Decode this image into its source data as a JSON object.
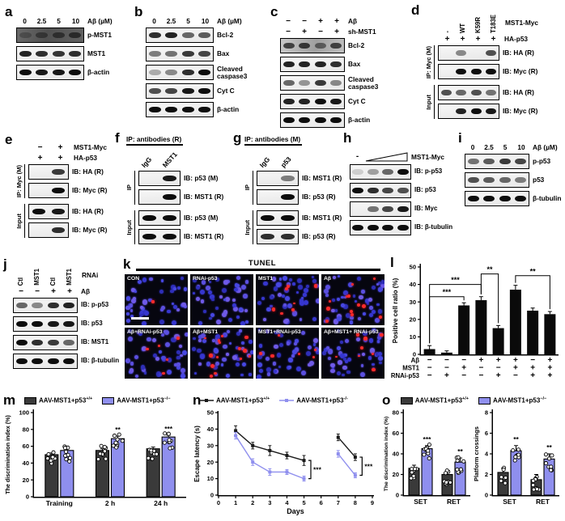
{
  "colors": {
    "wt_bar": "#3a3a3a",
    "ko_bar": "#8f8fee",
    "bar_black": "#0a0a0a",
    "tunel_red": "#fb2b2b"
  },
  "panels": {
    "a": {
      "label": "a",
      "lane_labels": [
        "0",
        "2.5",
        "5",
        "10"
      ],
      "lane_header": "Aβ (µM)",
      "groups": [
        {
          "name": null,
          "blots": [
            {
              "label": "p-MST1",
              "dark": true,
              "bands": [
                0.3,
                0.5,
                0.62,
                0.72
              ]
            },
            {
              "label": "MST1",
              "bands": [
                0.9,
                0.85,
                0.82,
                0.85
              ]
            },
            {
              "label": "β-actin",
              "bands": [
                1,
                0.95,
                0.95,
                1
              ]
            }
          ]
        }
      ]
    },
    "b": {
      "label": "b",
      "lane_labels": [
        "0",
        "2.5",
        "5",
        "10"
      ],
      "lane_header": "Aβ (µM)",
      "groups": [
        {
          "name": null,
          "blots": [
            {
              "label": "Bcl-2",
              "bands": [
                0.85,
                0.9,
                0.6,
                0.65
              ]
            },
            {
              "label": "Bax",
              "bands": [
                0.5,
                0.55,
                0.8,
                0.75
              ]
            },
            {
              "label": "Cleaved\ncaspase3",
              "bands": [
                0.3,
                0.45,
                0.85,
                1
              ]
            },
            {
              "label": "Cyt C",
              "bands": [
                0.7,
                0.75,
                0.95,
                1
              ]
            },
            {
              "label": "β-actin",
              "bands": [
                1,
                1,
                1,
                1
              ]
            }
          ]
        }
      ]
    },
    "c": {
      "label": "c",
      "condition_rows": [
        {
          "name": "Aβ",
          "values": [
            "−",
            "−",
            "+",
            "+"
          ]
        },
        {
          "name": "sh-MST1",
          "values": [
            "−",
            "+",
            "−",
            "+"
          ]
        }
      ],
      "groups": [
        {
          "name": null,
          "blots": [
            {
              "label": "Bcl-2",
              "gray": true,
              "bands": [
                0.7,
                0.75,
                0.5,
                0.7
              ]
            },
            {
              "label": "Bax",
              "bands": [
                0.9,
                0.9,
                0.9,
                0.85
              ]
            },
            {
              "label": "Cleaved\ncaspase3",
              "bands": [
                0.6,
                0.4,
                0.8,
                0.45
              ]
            },
            {
              "label": "Cyt C",
              "bands": [
                0.9,
                0.9,
                1,
                0.95
              ]
            },
            {
              "label": "β-actin",
              "bands": [
                1,
                1,
                1,
                1
              ]
            }
          ]
        }
      ]
    },
    "d": {
      "label": "d",
      "rotated_lanes": [
        "-",
        "WT",
        "K59R",
        "T183E"
      ],
      "rotated_header": "MST1-Myc",
      "condition_rows": [
        {
          "name": "HA-p53",
          "values": [
            "+",
            "+",
            "+",
            "+"
          ]
        }
      ],
      "groups": [
        {
          "name": "IP: Myc (M)",
          "blots": [
            {
              "label": "IB: HA (R)",
              "bands": [
                0,
                0.45,
                0,
                0.7
              ]
            },
            {
              "label": "IB: Myc (R)",
              "bands": [
                0,
                1,
                1,
                1
              ]
            }
          ]
        },
        {
          "name": "Input",
          "blots": [
            {
              "label": "IB: HA (R)",
              "bands": [
                0.7,
                0.6,
                0.7,
                0.55
              ]
            },
            {
              "label": "IB: Myc (R)",
              "bands": [
                0,
                0.9,
                1,
                0.95
              ]
            }
          ]
        }
      ]
    },
    "e": {
      "label": "e",
      "condition_rows": [
        {
          "name": "MST1-Myc",
          "values": [
            "−",
            "+"
          ]
        },
        {
          "name": "HA-p53",
          "values": [
            "+",
            "+"
          ]
        }
      ],
      "groups": [
        {
          "name": "IP: Myc (M)",
          "blots": [
            {
              "label": "IB: HA (R)",
              "bands": [
                0,
                0.8
              ]
            },
            {
              "label": "IB: Myc (R)",
              "bands": [
                0,
                1
              ]
            }
          ]
        },
        {
          "name": "Input",
          "blots": [
            {
              "label": "IB: HA (R)",
              "bands": [
                1,
                0.95
              ]
            },
            {
              "label": "IB: Myc (R)",
              "bands": [
                0,
                0.85
              ]
            }
          ]
        }
      ]
    },
    "f": {
      "label": "f",
      "ip_header": "IP: antibodies (R)",
      "rotated_lanes": [
        "IgG",
        "MST1"
      ],
      "groups": [
        {
          "name": "IP",
          "blots": [
            {
              "label": "IB: p53 (M)",
              "bands": [
                0,
                0.95
              ]
            },
            {
              "label": "IB: MST1 (R)",
              "bands": [
                0,
                1
              ]
            }
          ]
        },
        {
          "name": "Input",
          "blots": [
            {
              "label": "IB: p53 (M)",
              "bands": [
                1,
                1
              ]
            },
            {
              "label": "IB: MST1 (R)",
              "bands": [
                1,
                1
              ]
            }
          ]
        }
      ]
    },
    "g": {
      "label": "g",
      "ip_header": "IP: antibodies (M)",
      "rotated_lanes": [
        "IgG",
        "p53"
      ],
      "groups": [
        {
          "name": "IP",
          "blots": [
            {
              "label": "IB: MST1 (R)",
              "bands": [
                0,
                0.5
              ]
            },
            {
              "label": "IB: p53 (R)",
              "bands": [
                0,
                1
              ]
            }
          ]
        },
        {
          "name": "Input",
          "blots": [
            {
              "label": "IB: MST1 (R)",
              "bands": [
                1,
                1
              ]
            },
            {
              "label": "IB: p53 (R)",
              "bands": [
                0.85,
                0.85
              ]
            }
          ]
        }
      ]
    },
    "h": {
      "label": "h",
      "wedge": {
        "first": "-",
        "label": "MST1-Myc"
      },
      "groups": [
        {
          "name": null,
          "blots": [
            {
              "label": "IB: p-p53",
              "bands": [
                0.15,
                0.35,
                0.6,
                1
              ]
            },
            {
              "label": "IB: p53",
              "bands": [
                1,
                0.85,
                0.75,
                0.7
              ]
            },
            {
              "label": "IB: Myc",
              "bands": [
                0,
                0.55,
                0.75,
                0.95
              ]
            },
            {
              "label": "IB: β-tubulin",
              "bands": [
                1,
                1,
                1,
                1
              ]
            }
          ]
        }
      ]
    },
    "i": {
      "label": "i",
      "lane_labels": [
        "0",
        "2.5",
        "5",
        "10"
      ],
      "lane_header": "Aβ (µM)",
      "groups": [
        {
          "name": null,
          "blots": [
            {
              "label": "p-p53",
              "bands": [
                0.55,
                0.65,
                0.8,
                0.75
              ]
            },
            {
              "label": "p53",
              "bands": [
                0.7,
                0.65,
                0.6,
                0.5
              ]
            },
            {
              "label": "β-tubulin",
              "bands": [
                1,
                1,
                1,
                1
              ]
            }
          ]
        }
      ]
    },
    "j": {
      "label": "j",
      "rotated_lanes": [
        "Ctl",
        "MST1",
        "Ctl",
        "MST1"
      ],
      "rotated_header": "RNAi",
      "condition_rows": [
        {
          "name": "Aβ",
          "values": [
            "−",
            "−",
            "+",
            "+"
          ]
        }
      ],
      "groups": [
        {
          "name": null,
          "blots": [
            {
              "label": "IB: p-p53",
              "bands": [
                0.6,
                0.45,
                0.85,
                0.9
              ]
            },
            {
              "label": "IB: p53",
              "bands": [
                1,
                1,
                0.95,
                0.95
              ]
            },
            {
              "label": "IB: MST1",
              "bands": [
                1,
                0.85,
                0.8,
                0.6
              ]
            },
            {
              "label": "IB: β-tubulin",
              "bands": [
                1,
                1,
                1,
                1
              ]
            }
          ]
        }
      ]
    },
    "k": {
      "label": "k",
      "title": "TUNEL",
      "tiles": [
        {
          "name": "CON",
          "red": 1,
          "scalebar": true
        },
        {
          "name": "RNAi-p53",
          "red": 0
        },
        {
          "name": "MST1",
          "red": 7
        },
        {
          "name": "Aβ",
          "red": 12
        },
        {
          "name": "Aβ+RNAi-p53",
          "red": 5
        },
        {
          "name": "Aβ+MST1",
          "red": 14
        },
        {
          "name": "MST1+RNAi-p53",
          "red": 6
        },
        {
          "name": "Aβ+MST1+ RNAi-p53",
          "red": 8
        }
      ]
    },
    "l": {
      "label": "l",
      "chart_data": {
        "type": "bar",
        "title": "",
        "ylabel": "Positive cell ratio (%)",
        "ylim": [
          0,
          50
        ],
        "yticks": [
          0,
          10,
          20,
          30,
          40,
          50
        ],
        "values": [
          3,
          1,
          28,
          31,
          15,
          37,
          25,
          23
        ],
        "errors": [
          2,
          1,
          1.5,
          2,
          1.5,
          2.5,
          1.5,
          1.5
        ],
        "condition_rows": [
          {
            "name": "Aβ",
            "values": [
              "−",
              "−",
              "−",
              "+",
              "+",
              "+",
              "−",
              "+"
            ]
          },
          {
            "name": "MST1",
            "values": [
              "−",
              "−",
              "+",
              "−",
              "−",
              "+",
              "+",
              "+"
            ]
          },
          {
            "name": "RNAi-p53",
            "values": [
              "−",
              "+",
              "−",
              "−",
              "+",
              "−",
              "+",
              "+"
            ]
          }
        ],
        "brackets": [
          {
            "from": 0,
            "to": 2,
            "y": 33,
            "label": "***"
          },
          {
            "from": 0,
            "to": 3,
            "y": 40,
            "label": "***"
          },
          {
            "from": 3,
            "to": 4,
            "y": 46,
            "label": "**"
          },
          {
            "from": 5,
            "to": 7,
            "y": 45,
            "label": "**"
          }
        ]
      }
    },
    "m": {
      "label": "m",
      "chart_data": {
        "type": "bar",
        "legend": [
          {
            "label": "AAV-MST1+p53",
            "sup": "+/+"
          },
          {
            "label": "AAV-MST1+p53",
            "sup": "−/−"
          }
        ],
        "ylabel": "The discrimination index (%)",
        "ylim": [
          0,
          100
        ],
        "yticks": [
          0,
          20,
          40,
          60,
          80,
          100
        ],
        "categories": [
          "Training",
          "2 h",
          "24 h"
        ],
        "series": [
          {
            "name": "AAV-MST1+p53+/+",
            "values": [
              50,
              55,
              57
            ],
            "errors": [
              2,
              2,
              2
            ]
          },
          {
            "name": "AAV-MST1+p53−/−",
            "values": [
              55,
              69,
              71
            ],
            "errors": [
              2,
              3,
              2
            ]
          }
        ],
        "sig": [
          "",
          "**",
          "***"
        ]
      }
    },
    "n": {
      "label": "n",
      "chart_data": {
        "type": "line",
        "legend": [
          {
            "label": "AAV-MST1+p53",
            "sup": "+/+"
          },
          {
            "label": "AAV-MST1+p53",
            "sup": "-/-"
          }
        ],
        "xlabel": "Days",
        "ylabel": "Escape latency (s)",
        "ylim": [
          0,
          50
        ],
        "yticks": [
          0,
          10,
          20,
          30,
          40,
          50
        ],
        "xticks": [
          0,
          1,
          2,
          3,
          4,
          5,
          6,
          7,
          8,
          9
        ],
        "series": [
          {
            "name": "AAV-MST1+p53 +/+",
            "segments": [
              {
                "x": [
                  1,
                  2,
                  3,
                  4,
                  5
                ],
                "y": [
                  39,
                  30,
                  27,
                  24,
                  21
                ],
                "err": [
                  3,
                  2,
                  3,
                  2,
                  3
                ]
              },
              {
                "x": [
                  7,
                  8
                ],
                "y": [
                  35,
                  23
                ],
                "err": [
                  2,
                  2
                ]
              }
            ]
          },
          {
            "name": "AAV-MST1+p53 -/-",
            "segments": [
              {
                "x": [
                  1,
                  2,
                  3,
                  4,
                  5
                ],
                "y": [
                  36,
                  20,
                  14,
                  14,
                  10
                ],
                "err": [
                  2,
                  2,
                  2,
                  1.5,
                  1.5
                ]
              },
              {
                "x": [
                  7,
                  8
                ],
                "y": [
                  25,
                  12
                ],
                "err": [
                  2,
                  1.5
                ]
              }
            ]
          }
        ],
        "brackets": [
          {
            "x": 5.4,
            "top": 21,
            "bottom": 10,
            "label": "***"
          },
          {
            "x": 8.4,
            "top": 23,
            "bottom": 12,
            "label": "***"
          }
        ]
      }
    },
    "o": {
      "label": "o",
      "legend": [
        {
          "label": "AAV-MST1+p53",
          "sup": "+/+"
        },
        {
          "label": "AAV-MST1+p53",
          "sup": "−/−"
        }
      ],
      "chart_data": [
        {
          "type": "bar",
          "ylabel": "The discrimination index (%)",
          "ylim": [
            0,
            80
          ],
          "yticks": [
            0,
            20,
            40,
            60,
            80
          ],
          "categories": [
            "SET",
            "RET"
          ],
          "series": [
            {
              "name": "AAV-MST1+p53+/+",
              "values": [
                26,
                20
              ],
              "errors": [
                3,
                3
              ]
            },
            {
              "name": "AAV-MST1+p53−/−",
              "values": [
                45,
                32
              ],
              "errors": [
                3,
                4
              ]
            }
          ],
          "sig": [
            "***",
            "**"
          ]
        },
        {
          "type": "bar",
          "ylabel": "Platform crossings",
          "ylim": [
            0,
            8
          ],
          "yticks": [
            0,
            2,
            4,
            6,
            8
          ],
          "categories": [
            "SET",
            "RET"
          ],
          "series": [
            {
              "name": "AAV-MST1+p53+/+",
              "values": [
                2.2,
                1.5
              ],
              "errors": [
                0.4,
                0.5
              ]
            },
            {
              "name": "AAV-MST1+p53−/−",
              "values": [
                4.3,
                3.5
              ],
              "errors": [
                0.5,
                0.5
              ]
            }
          ],
          "sig": [
            "**",
            "**"
          ]
        }
      ]
    }
  }
}
